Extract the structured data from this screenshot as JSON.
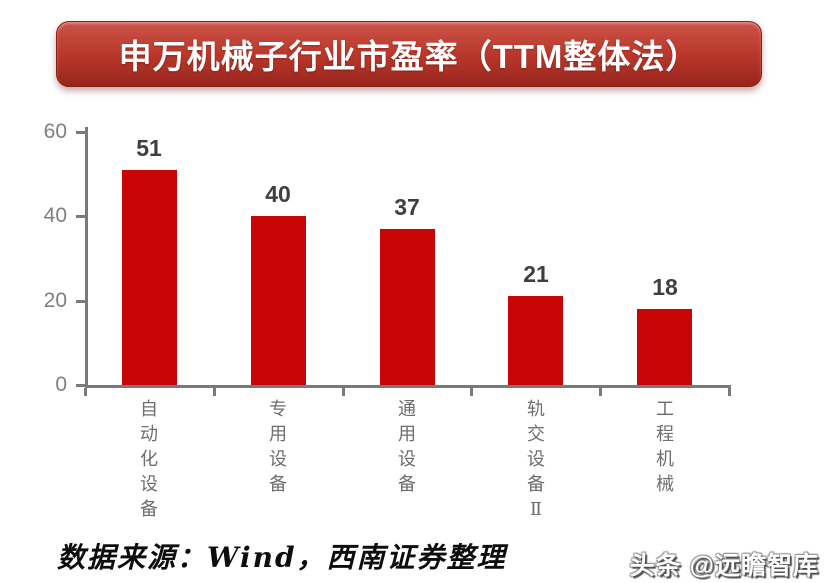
{
  "banner": {
    "title": "申万机械子行业市盈率（TTM整体法）"
  },
  "chart_data": {
    "type": "bar",
    "title": "申万机械子行业市盈率（TTM整体法）",
    "categories": [
      "自动化设备",
      "专用设备",
      "通用设备",
      "轨交设备Ⅱ",
      "工程机械"
    ],
    "values": [
      51,
      40,
      37,
      21,
      18
    ],
    "xlabel": "",
    "ylabel": "",
    "ylim": [
      0,
      60
    ],
    "yticks": [
      0,
      20,
      40,
      60
    ],
    "grid": false,
    "legend": "none",
    "category_orientation": "vertical-stacked",
    "bar_color": "#c80404",
    "axis_color": "#7a7a7a",
    "value_label_color": "#3f3f3f",
    "tick_label_color": "#7f7f7f"
  },
  "footer": {
    "source": "数据来源：Wind，西南证券整理",
    "watermark": "头条 @远瞻智库"
  }
}
